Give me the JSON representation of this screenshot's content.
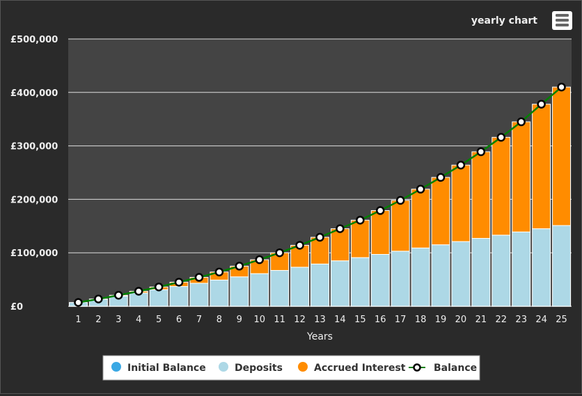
{
  "header": {
    "title": "yearly chart",
    "menu_icon": "hamburger-menu-icon"
  },
  "chart_data": {
    "type": "bar",
    "stacked": true,
    "title": "",
    "xlabel": "Years",
    "ylabel": "",
    "ylim": [
      0,
      500000
    ],
    "yticks": [
      "£0",
      "£100,000",
      "£200,000",
      "£300,000",
      "£400,000",
      "£500,000"
    ],
    "ytick_values": [
      0,
      100000,
      200000,
      300000,
      400000,
      500000
    ],
    "grid": true,
    "legend_position": "bottom",
    "categories": [
      "1",
      "2",
      "3",
      "4",
      "5",
      "6",
      "7",
      "8",
      "9",
      "10",
      "11",
      "12",
      "13",
      "14",
      "15",
      "16",
      "17",
      "18",
      "19",
      "20",
      "21",
      "22",
      "23",
      "24",
      "25"
    ],
    "series": [
      {
        "name": "Initial Balance",
        "type": "bar",
        "color": "#3aa8e4",
        "values": [
          0,
          0,
          0,
          0,
          0,
          0,
          0,
          0,
          0,
          0,
          0,
          0,
          0,
          0,
          0,
          0,
          0,
          0,
          0,
          0,
          0,
          0,
          0,
          0,
          0
        ]
      },
      {
        "name": "Deposits",
        "type": "bar",
        "color": "#add8e6",
        "values": [
          7000,
          13000,
          19000,
          25000,
          31000,
          37000,
          43000,
          49000,
          55000,
          61000,
          67000,
          73000,
          79000,
          85000,
          91000,
          97000,
          103000,
          109000,
          115000,
          121000,
          127000,
          133000,
          139000,
          145000,
          151000
        ]
      },
      {
        "name": "Accrued Interest",
        "type": "bar",
        "color": "#ff8c00",
        "values": [
          0,
          500,
          1500,
          3000,
          5000,
          8000,
          11000,
          15000,
          20000,
          26000,
          33000,
          41000,
          50000,
          60000,
          70000,
          82000,
          95000,
          110000,
          126000,
          143000,
          162000,
          183000,
          206000,
          233000,
          259000
        ]
      },
      {
        "name": "Balance",
        "type": "line",
        "color": "#008000",
        "values": [
          7000,
          13500,
          20500,
          28000,
          36000,
          45000,
          54000,
          64000,
          75000,
          87000,
          100000,
          114000,
          129000,
          145000,
          161000,
          179000,
          198000,
          219000,
          241000,
          264000,
          289000,
          316000,
          345000,
          378000,
          410000
        ]
      }
    ]
  }
}
